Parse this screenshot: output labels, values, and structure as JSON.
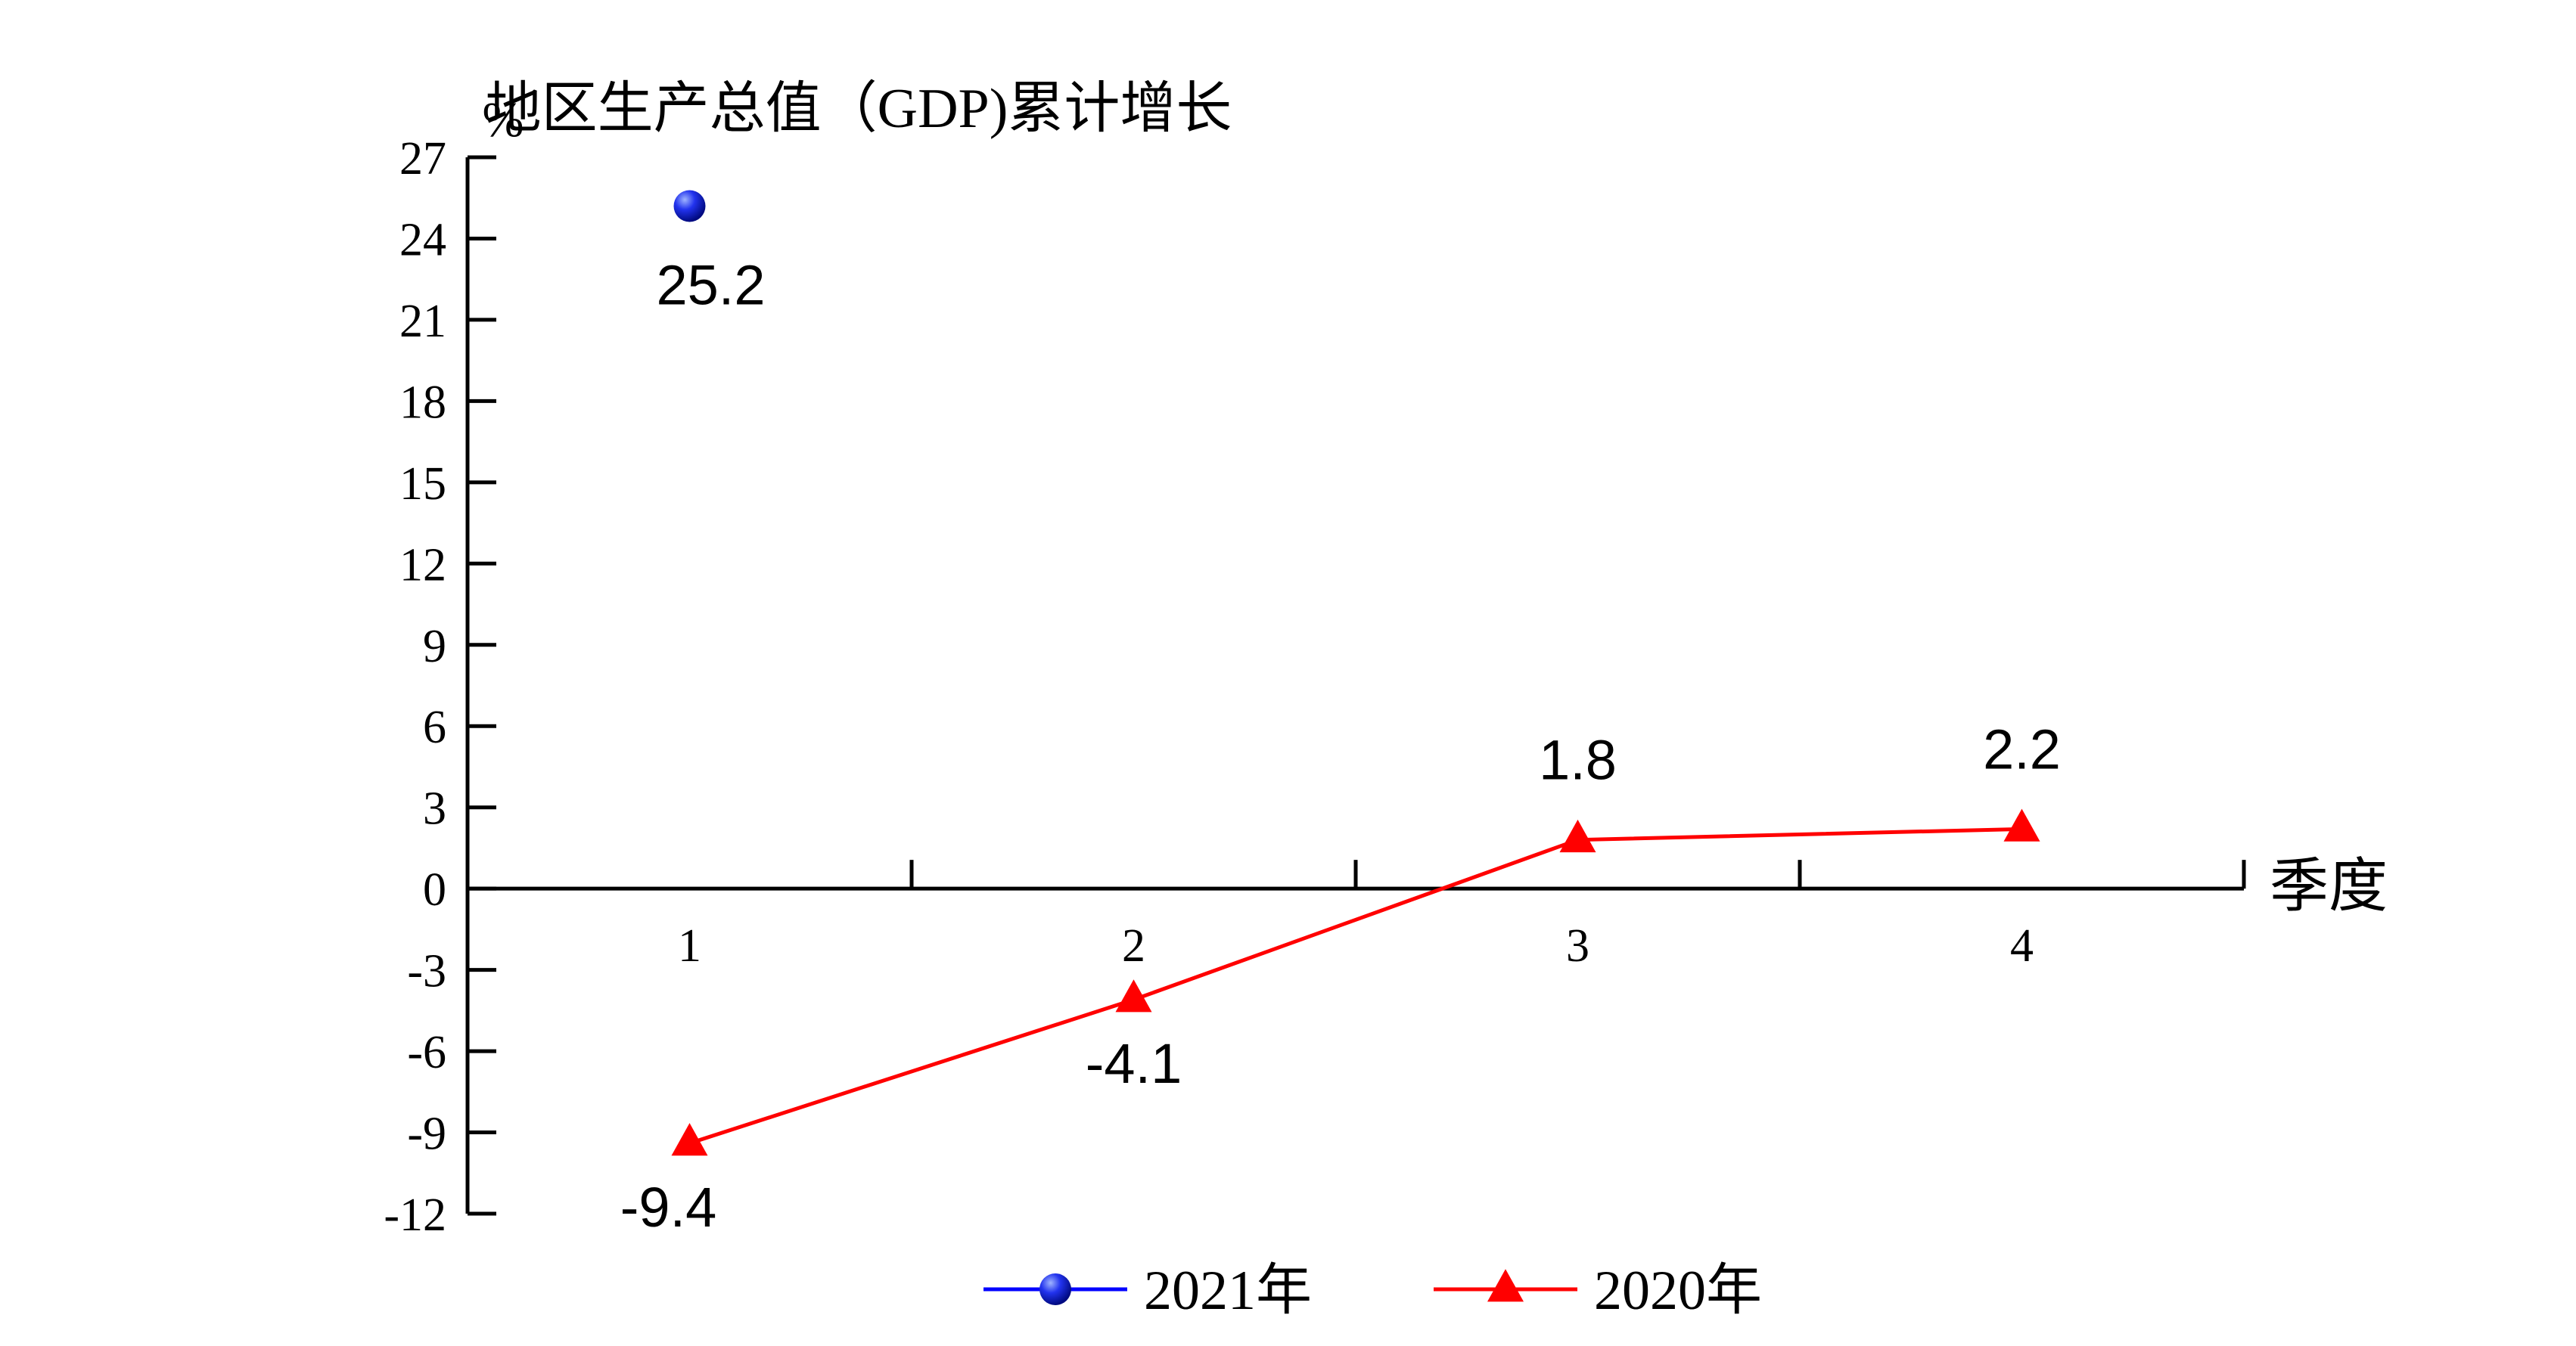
{
  "chart_data": {
    "type": "line",
    "title": "地区生产总值（GDP)累计增长",
    "ylabel": "%",
    "xlabel": "季度",
    "categories": [
      "1",
      "2",
      "3",
      "4"
    ],
    "ylim": [
      -12,
      27
    ],
    "yticks": [
      27,
      24,
      21,
      18,
      15,
      12,
      9,
      6,
      3,
      0,
      -3,
      -6,
      -9,
      -12
    ],
    "ytick_labels": [
      "27",
      "24",
      "21",
      "18",
      "15",
      "12",
      "9",
      "6",
      "3",
      "0",
      "-3",
      "-6",
      "-9",
      "-12"
    ],
    "grid": false,
    "legend_position": "bottom",
    "series": [
      {
        "name": "2021年",
        "color": "#0000ff",
        "marker": "circle",
        "values": [
          25.2,
          null,
          null,
          null
        ],
        "data_labels": [
          "25.2",
          "",
          "",
          ""
        ]
      },
      {
        "name": "2020年",
        "color": "#ff0000",
        "marker": "triangle",
        "values": [
          -9.4,
          -4.1,
          1.8,
          2.2
        ],
        "data_labels": [
          "-9.4",
          "-4.1",
          "1.8",
          "2.2"
        ]
      }
    ]
  }
}
